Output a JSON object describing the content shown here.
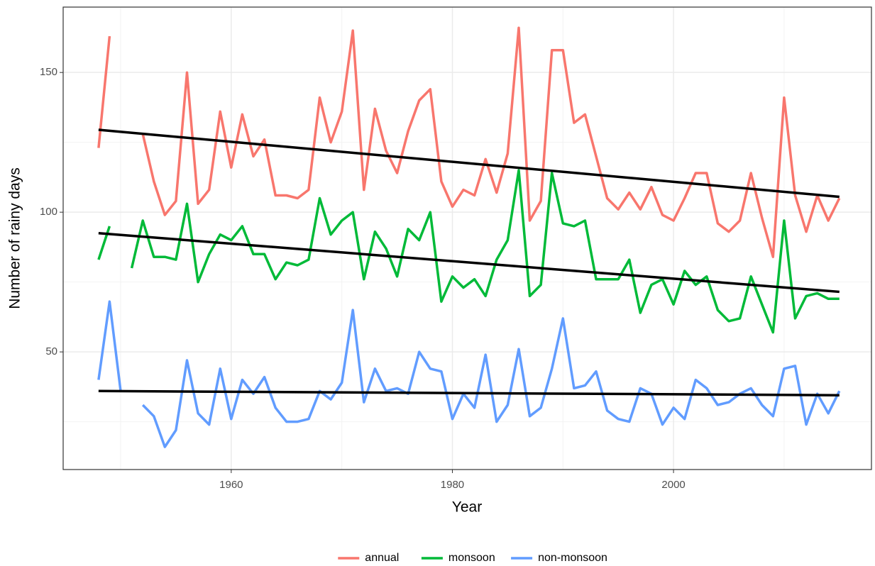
{
  "chart_data": {
    "type": "line",
    "x_label": "Year",
    "y_label": "Number of rainy days",
    "x": [
      1948,
      1949,
      1950,
      1951,
      1952,
      1953,
      1954,
      1955,
      1956,
      1957,
      1958,
      1959,
      1960,
      1961,
      1962,
      1963,
      1964,
      1965,
      1966,
      1967,
      1968,
      1969,
      1970,
      1971,
      1972,
      1973,
      1974,
      1975,
      1976,
      1977,
      1978,
      1979,
      1980,
      1981,
      1982,
      1983,
      1984,
      1985,
      1986,
      1987,
      1988,
      1989,
      1990,
      1991,
      1992,
      1993,
      1994,
      1995,
      1996,
      1997,
      1998,
      1999,
      2000,
      2001,
      2002,
      2003,
      2004,
      2005,
      2006,
      2007,
      2008,
      2009,
      2010,
      2011,
      2012,
      2013,
      2014,
      2015
    ],
    "series": [
      {
        "name": "annual",
        "color": "#F8766D",
        "values": [
          123,
          163,
          null,
          null,
          128,
          111,
          99,
          104,
          150,
          103,
          108,
          136,
          116,
          135,
          120,
          126,
          106,
          106,
          105,
          108,
          141,
          125,
          136,
          165,
          108,
          137,
          122,
          114,
          129,
          140,
          144,
          111,
          102,
          108,
          106,
          119,
          107,
          121,
          166,
          97,
          104,
          158,
          158,
          132,
          135,
          120,
          105,
          101,
          107,
          101,
          109,
          99,
          97,
          105,
          114,
          114,
          96,
          93,
          97,
          114,
          98,
          84,
          141,
          106,
          93,
          106,
          97,
          105
        ]
      },
      {
        "name": "monsoon",
        "color": "#00BA38",
        "values": [
          83,
          95,
          null,
          80,
          97,
          84,
          84,
          83,
          103,
          75,
          85,
          92,
          90,
          95,
          85,
          85,
          76,
          82,
          81,
          83,
          105,
          92,
          97,
          100,
          76,
          93,
          87,
          77,
          94,
          90,
          100,
          68,
          77,
          73,
          76,
          70,
          83,
          90,
          115,
          70,
          74,
          114,
          96,
          95,
          97,
          76,
          76,
          76,
          83,
          64,
          74,
          76,
          67,
          79,
          74,
          77,
          65,
          61,
          62,
          77,
          67,
          57,
          97,
          62,
          70,
          71,
          69,
          69
        ]
      },
      {
        "name": "non-monsoon",
        "color": "#619CFF",
        "values": [
          40,
          68,
          36,
          null,
          31,
          27,
          16,
          22,
          47,
          28,
          24,
          44,
          26,
          40,
          35,
          41,
          30,
          25,
          25,
          26,
          36,
          33,
          39,
          65,
          32,
          44,
          36,
          37,
          35,
          50,
          44,
          43,
          26,
          35,
          30,
          49,
          25,
          31,
          51,
          27,
          30,
          44,
          62,
          37,
          38,
          43,
          29,
          26,
          25,
          37,
          35,
          24,
          30,
          26,
          40,
          37,
          31,
          32,
          35,
          37,
          31,
          27,
          44,
          45,
          24,
          35,
          28,
          36
        ]
      }
    ],
    "trends": [
      {
        "color": "#000000",
        "x": [
          1948,
          2015
        ],
        "values": [
          129.5,
          105.5
        ]
      },
      {
        "color": "#000000",
        "x": [
          1948,
          2015
        ],
        "values": [
          92.5,
          71.5
        ]
      },
      {
        "color": "#000000",
        "x": [
          1948,
          2015
        ],
        "values": [
          36,
          34.5
        ]
      }
    ],
    "xlim": [
      1944.8,
      2017.9
    ],
    "ylim": [
      7.9,
      173.4
    ],
    "xticks": [
      1960,
      1980,
      2000
    ],
    "yticks": [
      50,
      100,
      150
    ],
    "minor_xticks": [
      1950,
      1970,
      1990,
      2010
    ],
    "minor_yticks": [
      25,
      75,
      125
    ],
    "grid": true,
    "legend": "bottom"
  }
}
